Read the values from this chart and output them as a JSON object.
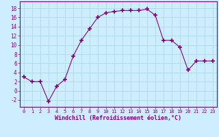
{
  "x": [
    0,
    1,
    2,
    3,
    4,
    5,
    6,
    7,
    8,
    9,
    10,
    11,
    12,
    13,
    14,
    15,
    16,
    17,
    18,
    19,
    20,
    21,
    22,
    23
  ],
  "y": [
    3,
    2,
    2,
    -2.3,
    1,
    2.5,
    7.5,
    11,
    13.5,
    16,
    17,
    17.3,
    17.5,
    17.5,
    17.5,
    17.8,
    16.5,
    11,
    11,
    9.5,
    4.5,
    6.5,
    6.5,
    6.5
  ],
  "line_color": "#800080",
  "marker": "+",
  "marker_size": 5,
  "bg_color": "#cceeff",
  "grid_color": "#aadddd",
  "xlabel": "Windchill (Refroidissement éolien,°C)",
  "xlabel_color": "#800080",
  "tick_color": "#800080",
  "ylim": [
    -3.5,
    19.5
  ],
  "xlim": [
    -0.5,
    23.5
  ],
  "yticks": [
    -2,
    0,
    2,
    4,
    6,
    8,
    10,
    12,
    14,
    16,
    18
  ],
  "xticks": [
    0,
    1,
    2,
    3,
    4,
    5,
    6,
    7,
    8,
    9,
    10,
    11,
    12,
    13,
    14,
    15,
    16,
    17,
    18,
    19,
    20,
    21,
    22,
    23
  ]
}
